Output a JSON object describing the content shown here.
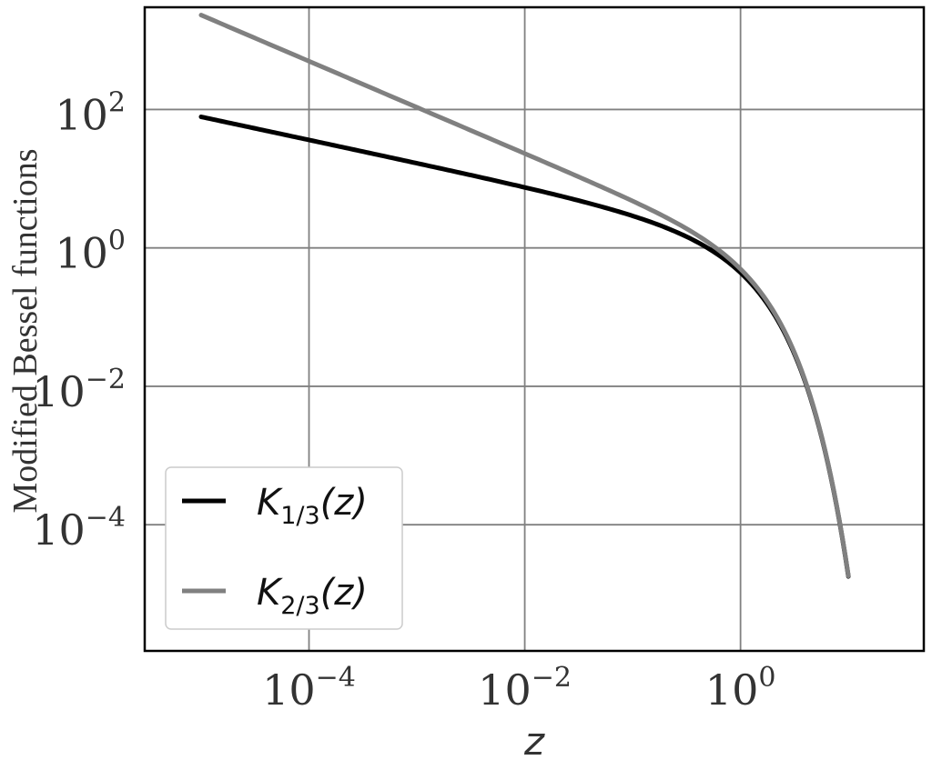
{
  "chart_data": {
    "type": "line",
    "xlabel": "z",
    "ylabel": "Modified Bessel functions",
    "xscale": "log",
    "yscale": "log",
    "xlim": [
      3e-06,
      50
    ],
    "ylim": [
      1.5e-06,
      3000.0
    ],
    "grid": true,
    "legend_position": "lower-left",
    "x_ticks": [
      {
        "value": 0.0001,
        "base": "10",
        "exp": "−4"
      },
      {
        "value": 0.01,
        "base": "10",
        "exp": "−2"
      },
      {
        "value": 1,
        "base": "10",
        "exp": "0"
      }
    ],
    "y_ticks": [
      {
        "value": 100,
        "base": "10",
        "exp": "2"
      },
      {
        "value": 1,
        "base": "10",
        "exp": "0"
      },
      {
        "value": 0.01,
        "base": "10",
        "exp": "−2"
      },
      {
        "value": 0.0001,
        "base": "10",
        "exp": "−4"
      }
    ],
    "series": [
      {
        "name": "K_{1/3}(z)",
        "label_main": "K",
        "label_sub": "1/3",
        "label_arg": "(z)",
        "color": "#000000",
        "nu": 0.3333333,
        "x": [
          1e-05,
          0.0001,
          0.001,
          0.01,
          0.1,
          0.3,
          0.5,
          1,
          2,
          3,
          5,
          7,
          10
        ],
        "y": [
          83.3,
          38.7,
          17.9,
          8.29,
          3.69,
          1.93,
          1.29,
          0.438,
          0.116,
          0.0359,
          0.00379,
          0.000433,
          1.8e-05
        ]
      },
      {
        "name": "K_{2/3}(z)",
        "label_main": "K",
        "label_sub": "2/3",
        "label_arg": "(z)",
        "color": "#808080",
        "nu": 0.6666667,
        "x": [
          1e-05,
          0.0001,
          0.001,
          0.01,
          0.1,
          0.3,
          0.5,
          1,
          2,
          3,
          5,
          7,
          10
        ],
        "y": [
          2924,
          629,
          136,
          29.3,
          6.38,
          2.28,
          1.34,
          0.494,
          0.125,
          0.0372,
          0.00391,
          0.000445,
          1.85e-05
        ]
      }
    ]
  }
}
